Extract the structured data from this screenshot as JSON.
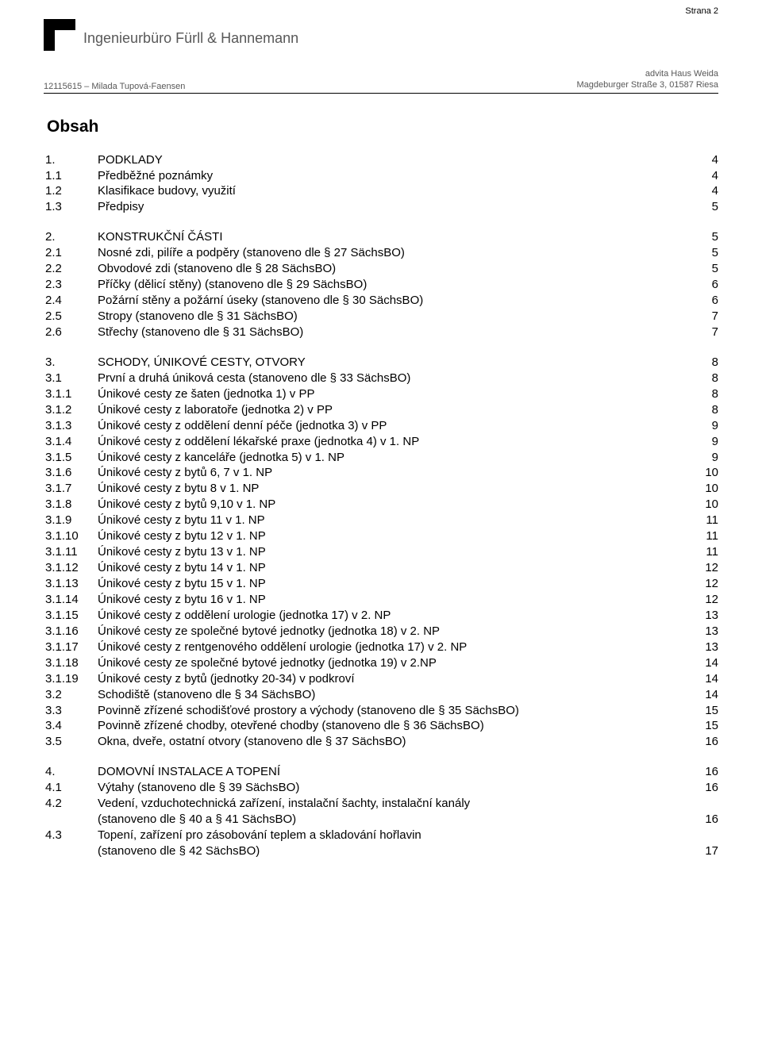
{
  "pageLabel": "Strana 2",
  "header": {
    "firm": "Ingenieurbüro Fürll & Hannemann",
    "project": "12115615 – Milada Tupová-Faensen",
    "clientLine1": "advita Haus Weida",
    "clientLine2": "Magdeburger Straße 3, 01587 Riesa"
  },
  "tocTitle": "Obsah",
  "toc": [
    {
      "num": "1.",
      "title": "PODKLADY",
      "page": "4",
      "spaced": false
    },
    {
      "num": "1.1",
      "title": "Předběžné poznámky",
      "page": "4"
    },
    {
      "num": "1.2",
      "title": "Klasifikace budovy, využití",
      "page": "4"
    },
    {
      "num": "1.3",
      "title": "Předpisy",
      "page": "5"
    },
    {
      "num": "2.",
      "title": "KONSTRUKČNÍ ČÁSTI",
      "page": "5",
      "spaced": true
    },
    {
      "num": "2.1",
      "title": "Nosné zdi, pilíře a podpěry (stanoveno dle § 27 SächsBO)",
      "page": "5"
    },
    {
      "num": "2.2",
      "title": "Obvodové zdi (stanoveno dle § 28 SächsBO)",
      "page": "5"
    },
    {
      "num": "2.3",
      "title": "Příčky (dělicí stěny) (stanoveno dle § 29 SächsBO)",
      "page": "6"
    },
    {
      "num": "2.4",
      "title": "Požární stěny a požární úseky (stanoveno dle § 30 SächsBO)",
      "page": "6"
    },
    {
      "num": "2.5",
      "title": "Stropy (stanoveno dle § 31 SächsBO)",
      "page": "7"
    },
    {
      "num": "2.6",
      "title": "Střechy (stanoveno dle § 31 SächsBO)",
      "page": "7"
    },
    {
      "num": "3.",
      "title": "SCHODY, ÚNIKOVÉ CESTY, OTVORY",
      "page": "8",
      "spaced": true
    },
    {
      "num": "3.1",
      "title": "První a druhá úniková cesta (stanoveno dle § 33 SächsBO)",
      "page": "8"
    },
    {
      "num": "3.1.1",
      "title": "Únikové cesty ze šaten (jednotka 1) v PP",
      "page": "8"
    },
    {
      "num": "3.1.2",
      "title": "Únikové cesty z laboratoře (jednotka 2) v PP",
      "page": "8"
    },
    {
      "num": "3.1.3",
      "title": "Únikové cesty z oddělení denní péče (jednotka 3) v PP",
      "page": "9"
    },
    {
      "num": "3.1.4",
      "title": "Únikové cesty z oddělení lékařské praxe (jednotka 4) v 1. NP",
      "page": "9"
    },
    {
      "num": "3.1.5",
      "title": "Únikové cesty z kanceláře (jednotka 5) v 1. NP",
      "page": "9"
    },
    {
      "num": "3.1.6",
      "title": "Únikové cesty z bytů 6, 7 v 1. NP",
      "page": "10"
    },
    {
      "num": "3.1.7",
      "title": "Únikové cesty z bytu 8 v 1. NP",
      "page": "10"
    },
    {
      "num": "3.1.8",
      "title": "Únikové cesty z bytů 9,10 v 1. NP",
      "page": "10"
    },
    {
      "num": "3.1.9",
      "title": "Únikové cesty z bytu 11 v 1. NP",
      "page": "11"
    },
    {
      "num": "3.1.10",
      "title": "Únikové cesty z bytu 12 v 1. NP",
      "page": "11"
    },
    {
      "num": "3.1.11",
      "title": "Únikové cesty z bytu 13 v 1. NP",
      "page": "11"
    },
    {
      "num": "3.1.12",
      "title": "Únikové cesty z bytu 14 v 1. NP",
      "page": "12"
    },
    {
      "num": "3.1.13",
      "title": "Únikové cesty z bytu 15 v 1. NP",
      "page": "12"
    },
    {
      "num": "3.1.14",
      "title": "Únikové cesty z bytu 16 v 1. NP",
      "page": "12"
    },
    {
      "num": "3.1.15",
      "title": "Únikové cesty z oddělení urologie (jednotka 17) v 2. NP",
      "page": "13"
    },
    {
      "num": "3.1.16",
      "title": "Únikové cesty ze společné bytové jednotky (jednotka 18) v 2. NP",
      "page": "13"
    },
    {
      "num": "3.1.17",
      "title": "Únikové cesty z rentgenového oddělení urologie (jednotka 17) v 2. NP",
      "page": "13"
    },
    {
      "num": "3.1.18",
      "title": "Únikové cesty ze společné bytové jednotky (jednotka 19) v 2.NP",
      "page": "14"
    },
    {
      "num": "3.1.19",
      "title": "Únikové cesty z bytů (jednotky 20-34) v podkroví",
      "page": "14"
    },
    {
      "num": "3.2",
      "title": "Schodiště (stanoveno dle § 34 SächsBO)",
      "page": "14"
    },
    {
      "num": "3.3",
      "title": "Povinně zřízené schodišťové prostory a východy (stanoveno dle § 35 SächsBO)",
      "page": "15"
    },
    {
      "num": "3.4",
      "title": "Povinně zřízené chodby, otevřené chodby  (stanoveno dle § 36 SächsBO)",
      "page": "15"
    },
    {
      "num": "3.5",
      "title": "Okna, dveře, ostatní otvory  (stanoveno dle § 37 SächsBO)",
      "page": "16"
    },
    {
      "num": "4.",
      "title": "DOMOVNÍ INSTALACE A TOPENÍ",
      "page": "16",
      "spaced": true
    },
    {
      "num": "4.1",
      "title": "Výtahy (stanoveno dle § 39 SächsBO)",
      "page": "16"
    },
    {
      "num": "4.2",
      "title": "Vedení, vzduchotechnická zařízení, instalační šachty, instalační kanály",
      "cont": "(stanoveno dle § 40 a  § 41 SächsBO)",
      "page": "16"
    },
    {
      "num": "4.3",
      "title": "Topení, zařízení pro zásobování teplem a skladování hořlavin",
      "cont": "(stanoveno dle § 42 SächsBO)",
      "page": "17"
    }
  ]
}
